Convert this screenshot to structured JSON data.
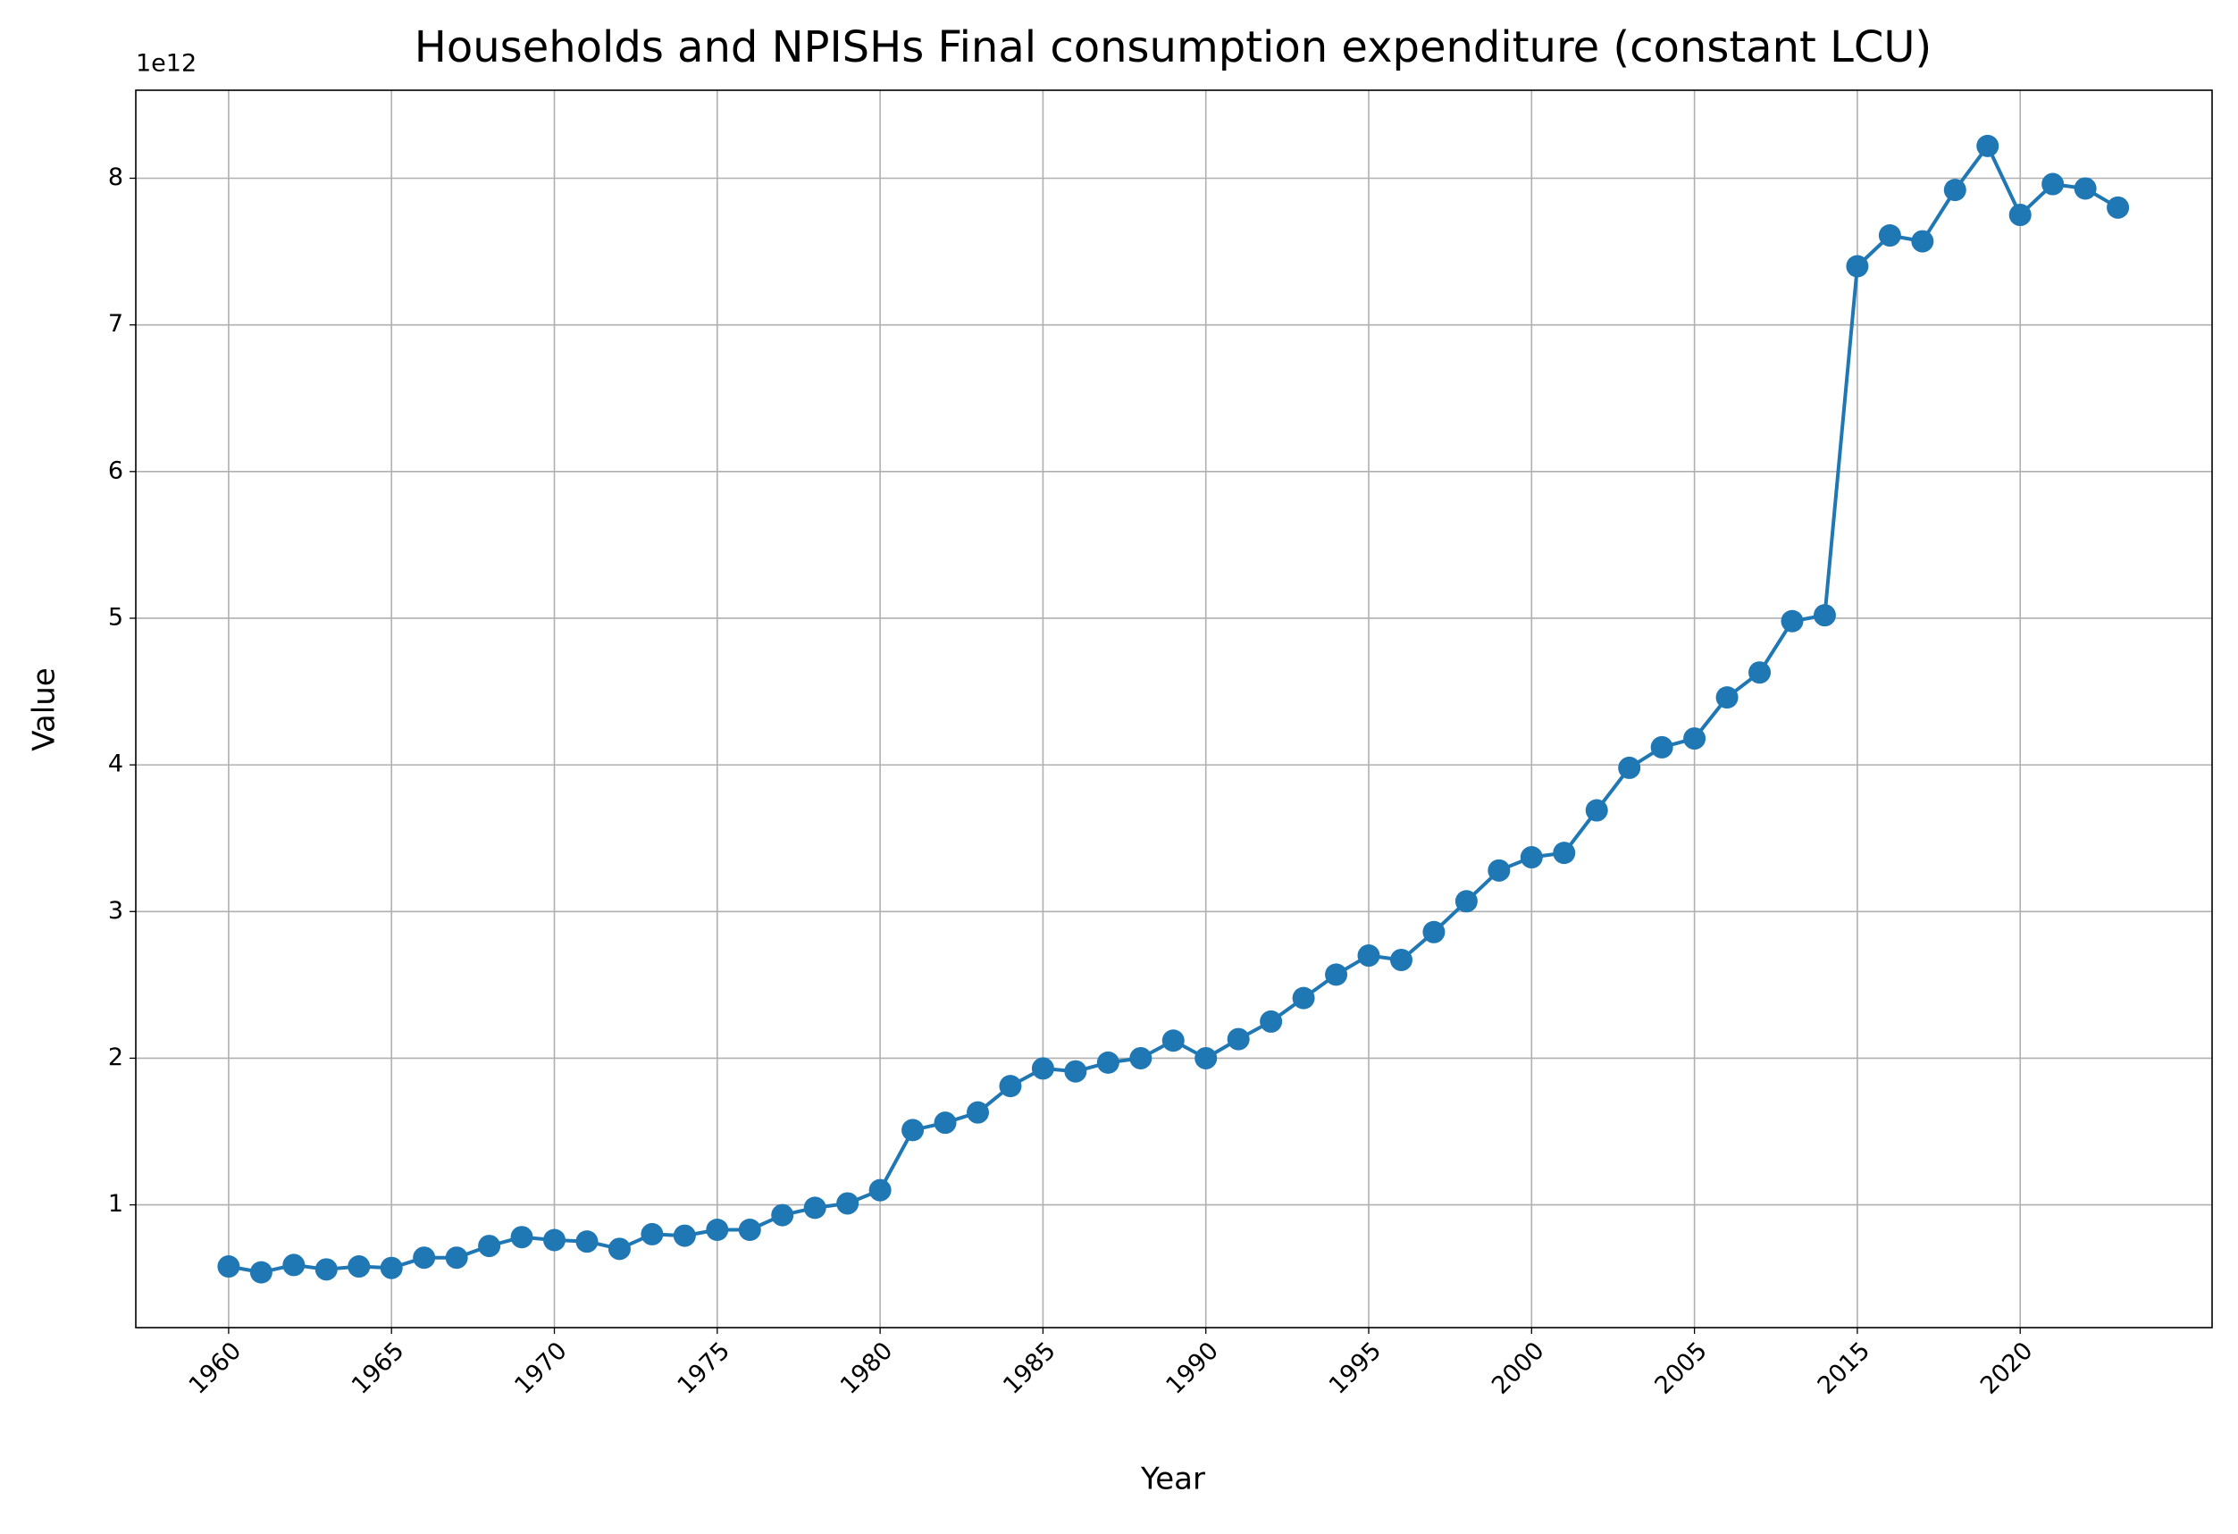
{
  "chart_data": {
    "type": "line",
    "title": "Households and NPISHs Final consumption expenditure (constant LCU)",
    "x_label": "Year",
    "y_label": "Value",
    "offset_label": "1e12",
    "categories": [
      "1960",
      null,
      null,
      null,
      null,
      "1965",
      null,
      null,
      null,
      null,
      "1970",
      null,
      null,
      null,
      null,
      "1975",
      null,
      null,
      null,
      null,
      "1980",
      null,
      null,
      null,
      null,
      "1985",
      null,
      null,
      null,
      null,
      "1990",
      null,
      null,
      null,
      null,
      "1995",
      null,
      null,
      null,
      null,
      "2000",
      null,
      null,
      null,
      null,
      "2005",
      null,
      null,
      null,
      null,
      "2015",
      null,
      null,
      null,
      null,
      "2020",
      null,
      null,
      null
    ],
    "series": [
      {
        "name": "Value",
        "color": "#1f77b4",
        "values": [
          0.58,
          0.54,
          0.59,
          0.56,
          0.58,
          0.57,
          0.64,
          0.64,
          0.72,
          0.78,
          0.76,
          0.75,
          0.7,
          0.8,
          0.79,
          0.83,
          0.83,
          0.93,
          0.98,
          1.01,
          1.1,
          1.51,
          1.56,
          1.63,
          1.81,
          1.93,
          1.91,
          1.97,
          2.0,
          2.12,
          2.0,
          2.13,
          2.25,
          2.41,
          2.57,
          2.7,
          2.67,
          2.86,
          3.07,
          3.28,
          3.37,
          3.4,
          3.69,
          3.98,
          4.12,
          4.18,
          4.46,
          4.63,
          4.98,
          5.02,
          7.4,
          7.61,
          7.57,
          7.92,
          8.22,
          7.75,
          7.96,
          7.93,
          7.8
        ]
      }
    ],
    "ylim": [
      0.163,
      8.6
    ],
    "yticks": [
      1,
      2,
      3,
      4,
      5,
      6,
      7,
      8
    ],
    "grid": true
  }
}
